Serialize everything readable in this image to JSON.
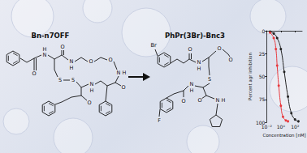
{
  "labels": {
    "left": "Bn-n7OFF",
    "right": "PhPr(3Br)-Bnc3"
  },
  "structures": {
    "left": {
      "atoms": [
        "O",
        "N",
        "H",
        "O",
        "N",
        "H",
        "O",
        "O",
        "N",
        "H",
        "O",
        "S",
        "S",
        "N",
        "H",
        "O"
      ]
    },
    "right": {
      "atoms": [
        "Br",
        "O",
        "N",
        "H",
        "O",
        "O",
        "S",
        "N",
        "H",
        "O",
        "N",
        "H",
        "O",
        "F"
      ]
    }
  },
  "chart_data": {
    "type": "line",
    "x_label": "Concentration [nM]",
    "y_label": "Percent agr inhibition",
    "log": "x",
    "xlim": [
      0.01,
      1000
    ],
    "xticks": [
      {
        "value": 0.01,
        "label": "10⁻²"
      },
      {
        "value": 1,
        "label": "10⁰"
      },
      {
        "value": 100,
        "label": "10²"
      }
    ],
    "ylim": [
      100,
      0
    ],
    "yticks": [
      0,
      25,
      50,
      75,
      100
    ],
    "grid": false,
    "marker": "circle",
    "series": [
      {
        "color": "#222222",
        "x": [
          0.03,
          0.1,
          0.3,
          1,
          3,
          10,
          30,
          100,
          300
        ],
        "values": [
          1,
          3,
          8,
          20,
          45,
          72,
          90,
          97,
          99
        ]
      },
      {
        "color": "#e8383d",
        "x": [
          0.03,
          0.1,
          0.2,
          0.3,
          0.5,
          1,
          2,
          5,
          10
        ],
        "values": [
          2,
          8,
          20,
          38,
          60,
          82,
          94,
          98,
          99
        ]
      }
    ]
  }
}
